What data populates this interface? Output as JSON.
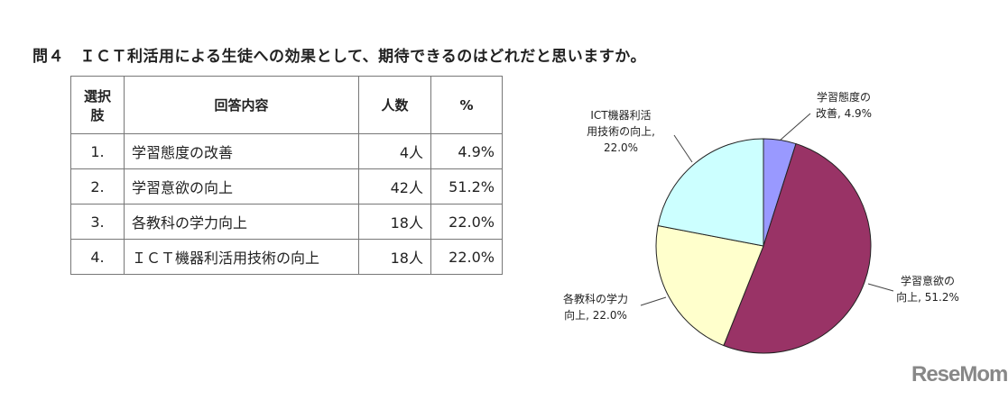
{
  "title": "問４　ＩＣＴ利活用による生徒への効果として、期待できるのはどれだと思いますか。",
  "table": {
    "headers": [
      "選択肢",
      "回答内容",
      "人数",
      "%"
    ],
    "rows": [
      {
        "no": "1.",
        "text": "学習態度の改善",
        "count": "4人",
        "pct": "4.9%"
      },
      {
        "no": "2.",
        "text": "学習意欲の向上",
        "count": "42人",
        "pct": "51.2%"
      },
      {
        "no": "3.",
        "text": "各教科の学力向上",
        "count": "18人",
        "pct": "22.0%"
      },
      {
        "no": "4.",
        "text": "ＩＣＴ機器利活用技術の向上",
        "count": "18人",
        "pct": "22.0%"
      }
    ]
  },
  "chart_data": {
    "type": "pie",
    "categories": [
      "学習態度の改善",
      "学習意欲の向上",
      "各教科の学力向上",
      "ICT機器利活用技術の向上"
    ],
    "values": [
      4.9,
      51.2,
      22.0,
      22.0
    ],
    "colors": [
      "#9999ff",
      "#993366",
      "#ffffcc",
      "#ccffff"
    ],
    "data_labels": [
      [
        "学習態度の",
        "改善, 4.9%"
      ],
      [
        "学習意欲の",
        "向上, 51.2%"
      ],
      [
        "各教科の学力",
        "向上, 22.0%"
      ],
      [
        "ICT機器利活",
        "用技術の向上,",
        "22.0%"
      ]
    ],
    "start": "top",
    "direction": "clockwise"
  },
  "logo": "ReseMom"
}
